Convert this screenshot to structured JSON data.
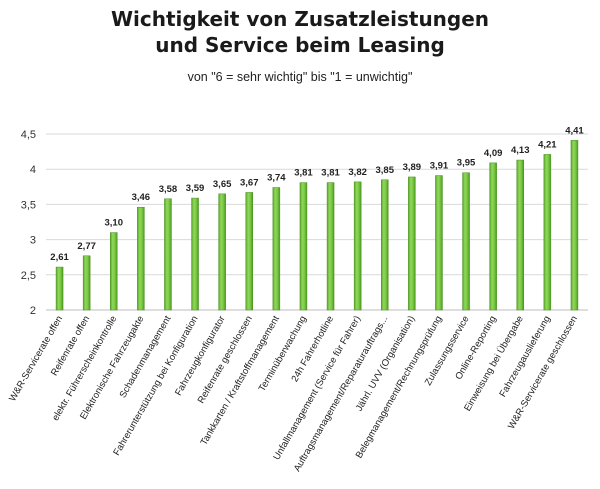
{
  "title_line1": "Wichtigkeit von Zusatzleistungen",
  "title_line2": "und Service beim Leasing",
  "subtitle": "von \"6 = sehr wichtig\" bis \"1 = unwichtig\"",
  "chart_data": {
    "type": "bar",
    "categories": [
      "W&R-Servicerate offen",
      "Reifenrate offen",
      "elektr. Führerscheinkontrolle",
      "Elektronische Fahrzeugakte",
      "Schadenmanagement",
      "Fahrerunterstützung bei Konfiguration",
      "Fahrzeugkonfigurator",
      "Reifenrate geschlossen",
      "Tankkarten / Kraftstoffmanagement",
      "Terminüberwachung",
      "24h Fahrerhotline",
      "Unfallmanagement (Service für Fahrer)",
      "Auftragsmanagement/Reparaturauftrags...",
      "Jährl. UVV (Organisation)",
      "Belegmanagement/Rechnungsprüfung",
      "Zulassungsservice",
      "Online-Reporting",
      "Einweisung bei Übergabe",
      "Fahrzeugauslieferung",
      "W&R-Servicerate geschlossen"
    ],
    "values": [
      2.61,
      2.77,
      3.1,
      3.46,
      3.58,
      3.59,
      3.65,
      3.67,
      3.74,
      3.81,
      3.81,
      3.82,
      3.85,
      3.89,
      3.91,
      3.95,
      4.09,
      4.13,
      4.21,
      4.41
    ],
    "value_labels": [
      "2,61",
      "2,77",
      "3,10",
      "3,46",
      "3,58",
      "3,59",
      "3,65",
      "3,67",
      "3,74",
      "3,81",
      "3,81",
      "3,82",
      "3,85",
      "3,89",
      "3,91",
      "3,95",
      "4,09",
      "4,13",
      "4,21",
      "4,41"
    ],
    "ylim": [
      2,
      4.5
    ],
    "yticks": [
      2,
      2.5,
      3,
      3.5,
      4,
      4.5
    ],
    "ytick_labels": [
      "2",
      "2,5",
      "3",
      "3,5",
      "4",
      "4,5"
    ],
    "grid": true,
    "bar_color": "#7ac943"
  }
}
